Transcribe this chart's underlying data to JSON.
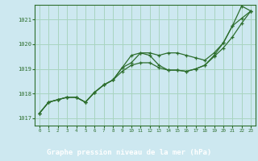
{
  "bg_color": "#cde8f0",
  "plot_bg_color": "#cde8f0",
  "footer_bg_color": "#2d5a27",
  "grid_color": "#a8d4c0",
  "line_color": "#2d6e2d",
  "marker_color": "#2d6e2d",
  "xlabel": "Graphe pression niveau de la mer (hPa)",
  "xlim": [
    -0.5,
    23.5
  ],
  "ylim": [
    1016.7,
    1021.6
  ],
  "yticks": [
    1017,
    1018,
    1019,
    1020,
    1021
  ],
  "xticks": [
    0,
    1,
    2,
    3,
    4,
    5,
    6,
    7,
    8,
    9,
    10,
    11,
    12,
    13,
    14,
    15,
    16,
    17,
    18,
    19,
    20,
    21,
    22,
    23
  ],
  "series": [
    [
      1017.2,
      1017.65,
      1017.75,
      1017.85,
      1017.85,
      1017.65,
      1018.05,
      1018.35,
      1018.55,
      1018.9,
      1019.15,
      1019.25,
      1019.25,
      1019.05,
      1018.95,
      1018.95,
      1018.9,
      1019.0,
      1019.15,
      1019.5,
      1019.85,
      1020.3,
      1020.85,
      1021.35
    ],
    [
      1017.2,
      1017.65,
      1017.75,
      1017.85,
      1017.85,
      1017.65,
      1018.05,
      1018.35,
      1018.55,
      1019.05,
      1019.55,
      1019.65,
      1019.65,
      1019.55,
      1019.65,
      1019.65,
      1019.55,
      1019.45,
      1019.35,
      1019.65,
      1020.05,
      1020.75,
      1021.05,
      1021.35
    ],
    [
      1017.2,
      1017.65,
      1017.75,
      1017.85,
      1017.85,
      1017.65,
      1018.05,
      1018.35,
      1018.55,
      1019.05,
      1019.25,
      1019.65,
      1019.55,
      1019.15,
      1018.95,
      1018.95,
      1018.9,
      1019.0,
      1019.15,
      1019.55,
      1020.05,
      1020.75,
      1021.55,
      1021.35
    ]
  ]
}
